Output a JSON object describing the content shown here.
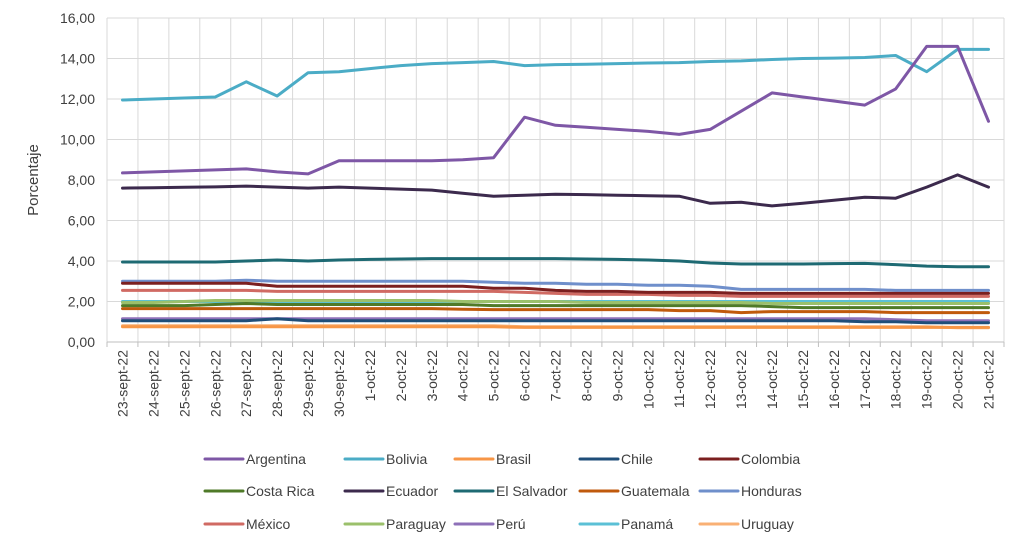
{
  "chart_data": {
    "type": "line",
    "title": "",
    "xlabel": "",
    "ylabel": "Porcentaje",
    "ylim": [
      0,
      16
    ],
    "yticks": [
      "0,00",
      "2,00",
      "4,00",
      "6,00",
      "8,00",
      "10,00",
      "12,00",
      "14,00",
      "16,00"
    ],
    "grid": true,
    "legend_position": "bottom",
    "categories": [
      "23-sept-22",
      "24-sept-22",
      "25-sept-22",
      "26-sept-22",
      "27-sept-22",
      "28-sept-22",
      "29-sept-22",
      "30-sept-22",
      "1-oct-22",
      "2-oct-22",
      "3-oct-22",
      "4-oct-22",
      "5-oct-22",
      "6-oct-22",
      "7-oct-22",
      "8-oct-22",
      "9-oct-22",
      "10-oct-22",
      "11-oct-22",
      "12-oct-22",
      "13-oct-22",
      "14-oct-22",
      "15-oct-22",
      "16-oct-22",
      "17-oct-22",
      "18-oct-22",
      "19-oct-22",
      "20-oct-22",
      "21-oct-22"
    ],
    "series": [
      {
        "name": "Argentina",
        "color": "#7E57A6",
        "values": [
          8.35,
          8.4,
          8.45,
          8.5,
          8.55,
          8.4,
          8.3,
          8.95,
          8.95,
          8.95,
          8.95,
          9.0,
          9.1,
          11.1,
          10.7,
          10.6,
          10.5,
          10.4,
          10.25,
          10.5,
          11.4,
          12.3,
          12.1,
          11.9,
          11.7,
          12.5,
          14.6,
          14.6,
          10.9
        ]
      },
      {
        "name": "Bolivia",
        "color": "#4BACC6",
        "values": [
          11.95,
          12.0,
          12.05,
          12.1,
          12.85,
          12.15,
          13.3,
          13.35,
          13.5,
          13.65,
          13.75,
          13.8,
          13.85,
          13.65,
          13.7,
          13.72,
          13.75,
          13.78,
          13.8,
          13.85,
          13.88,
          13.95,
          14.0,
          14.02,
          14.05,
          14.15,
          13.35,
          14.45,
          14.45
        ]
      },
      {
        "name": "Brasil",
        "color": "#F79646",
        "values": [
          0.75,
          0.75,
          0.75,
          0.75,
          0.75,
          0.75,
          0.75,
          0.75,
          0.75,
          0.75,
          0.75,
          0.75,
          0.75,
          0.72,
          0.72,
          0.72,
          0.72,
          0.72,
          0.72,
          0.72,
          0.72,
          0.72,
          0.72,
          0.72,
          0.72,
          0.72,
          0.72,
          0.72,
          0.72
        ]
      },
      {
        "name": "Chile",
        "color": "#1F4E79",
        "values": [
          1.05,
          1.05,
          1.05,
          1.05,
          1.05,
          1.15,
          1.05,
          1.05,
          1.05,
          1.05,
          1.05,
          1.05,
          1.05,
          1.05,
          1.05,
          1.05,
          1.05,
          1.05,
          1.05,
          1.05,
          1.05,
          1.05,
          1.05,
          1.05,
          1.0,
          1.0,
          0.95,
          0.95,
          0.95
        ]
      },
      {
        "name": "Colombia",
        "color": "#7B1F1F",
        "values": [
          2.9,
          2.9,
          2.9,
          2.9,
          2.9,
          2.75,
          2.75,
          2.75,
          2.75,
          2.75,
          2.75,
          2.75,
          2.65,
          2.65,
          2.55,
          2.5,
          2.5,
          2.45,
          2.45,
          2.45,
          2.4,
          2.4,
          2.4,
          2.4,
          2.4,
          2.4,
          2.4,
          2.4,
          2.4
        ]
      },
      {
        "name": "Costa Rica",
        "color": "#4F7A28",
        "values": [
          1.8,
          1.8,
          1.8,
          1.85,
          1.9,
          1.85,
          1.85,
          1.85,
          1.85,
          1.85,
          1.85,
          1.85,
          1.8,
          1.8,
          1.8,
          1.8,
          1.8,
          1.8,
          1.8,
          1.8,
          1.8,
          1.75,
          1.7,
          1.7,
          1.7,
          1.7,
          1.7,
          1.7,
          1.7
        ]
      },
      {
        "name": "Ecuador",
        "color": "#3C2A4D",
        "values": [
          7.6,
          7.62,
          7.64,
          7.66,
          7.7,
          7.65,
          7.6,
          7.65,
          7.6,
          7.55,
          7.5,
          7.35,
          7.2,
          7.25,
          7.3,
          7.28,
          7.25,
          7.22,
          7.2,
          6.85,
          6.9,
          6.72,
          6.85,
          7.0,
          7.15,
          7.1,
          7.65,
          8.25,
          7.65
        ]
      },
      {
        "name": "El Salvador",
        "color": "#1E6A73",
        "values": [
          3.95,
          3.95,
          3.95,
          3.95,
          4.0,
          4.05,
          4.0,
          4.05,
          4.08,
          4.1,
          4.12,
          4.12,
          4.12,
          4.12,
          4.12,
          4.1,
          4.08,
          4.05,
          4.0,
          3.9,
          3.85,
          3.85,
          3.85,
          3.87,
          3.88,
          3.82,
          3.75,
          3.72,
          3.72
        ]
      },
      {
        "name": "Guatemala",
        "color": "#C05A0C",
        "values": [
          1.65,
          1.65,
          1.65,
          1.65,
          1.65,
          1.65,
          1.65,
          1.65,
          1.65,
          1.65,
          1.65,
          1.62,
          1.6,
          1.6,
          1.6,
          1.6,
          1.6,
          1.6,
          1.55,
          1.55,
          1.45,
          1.5,
          1.5,
          1.5,
          1.5,
          1.45,
          1.45,
          1.45,
          1.45
        ]
      },
      {
        "name": "Honduras",
        "color": "#6F8FCB",
        "values": [
          3.0,
          3.0,
          3.0,
          3.0,
          3.05,
          3.0,
          3.0,
          3.0,
          3.0,
          3.0,
          3.0,
          3.0,
          2.95,
          2.9,
          2.9,
          2.85,
          2.85,
          2.8,
          2.8,
          2.75,
          2.6,
          2.6,
          2.6,
          2.6,
          2.6,
          2.55,
          2.55,
          2.55,
          2.55
        ]
      },
      {
        "name": "México",
        "color": "#D06A63",
        "values": [
          2.55,
          2.55,
          2.55,
          2.55,
          2.55,
          2.5,
          2.5,
          2.5,
          2.5,
          2.5,
          2.5,
          2.5,
          2.5,
          2.45,
          2.4,
          2.35,
          2.35,
          2.35,
          2.3,
          2.3,
          2.25,
          2.25,
          2.25,
          2.25,
          2.25,
          2.25,
          2.25,
          2.25,
          2.25
        ]
      },
      {
        "name": "Paraguay",
        "color": "#9BC06B",
        "values": [
          1.95,
          1.95,
          2.0,
          2.05,
          2.05,
          2.05,
          2.05,
          2.05,
          2.05,
          2.05,
          2.05,
          2.0,
          2.0,
          2.0,
          2.0,
          1.95,
          1.95,
          1.95,
          1.95,
          1.95,
          1.95,
          1.9,
          1.9,
          1.9,
          1.9,
          1.9,
          1.9,
          1.9,
          1.9
        ]
      },
      {
        "name": "Perú",
        "color": "#8E70B8",
        "values": [
          1.15,
          1.15,
          1.15,
          1.15,
          1.15,
          1.15,
          1.15,
          1.15,
          1.15,
          1.15,
          1.15,
          1.15,
          1.15,
          1.15,
          1.15,
          1.15,
          1.15,
          1.15,
          1.15,
          1.15,
          1.15,
          1.15,
          1.15,
          1.15,
          1.15,
          1.1,
          1.05,
          1.05,
          1.05
        ]
      },
      {
        "name": "Panamá",
        "color": "#5BC0D6",
        "values": [
          2.0,
          2.0,
          2.0,
          2.0,
          2.0,
          2.0,
          2.0,
          2.0,
          2.0,
          2.0,
          2.0,
          2.0,
          2.0,
          2.0,
          2.0,
          2.0,
          2.0,
          2.0,
          2.0,
          2.0,
          2.0,
          2.0,
          2.0,
          2.0,
          2.0,
          2.0,
          2.0,
          2.0,
          2.0
        ]
      },
      {
        "name": "Uruguay",
        "color": "#F9B074",
        "values": [
          0.8,
          0.8,
          0.8,
          0.8,
          0.8,
          0.8,
          0.8,
          0.8,
          0.8,
          0.8,
          0.8,
          0.8,
          0.8,
          0.75,
          0.75,
          0.75,
          0.75,
          0.75,
          0.75,
          0.75,
          0.75,
          0.75,
          0.75,
          0.75,
          0.75,
          0.75,
          0.75,
          0.7,
          0.7
        ]
      }
    ]
  }
}
